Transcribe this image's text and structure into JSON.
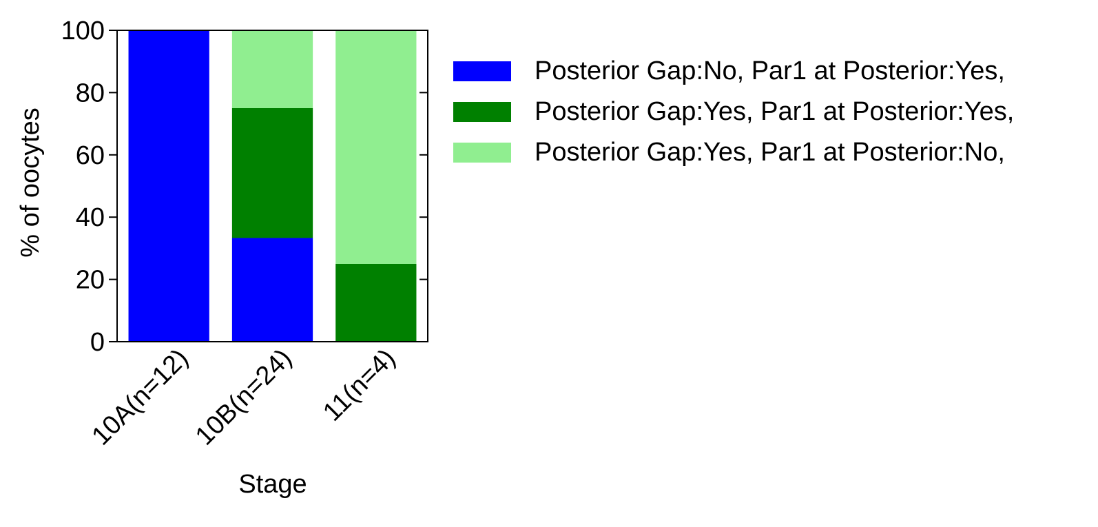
{
  "chart_data": {
    "type": "bar",
    "stacked": true,
    "title": "",
    "xlabel": "Stage",
    "ylabel": "% of oocytes",
    "ylim": [
      0,
      100
    ],
    "yticks": [
      0,
      20,
      40,
      60,
      80,
      100
    ],
    "yticklabels": [
      "0",
      "20",
      "40",
      "60",
      "80",
      "100"
    ],
    "categories": [
      "10A(n=12)",
      "10B(n=24)",
      "11(n=4)"
    ],
    "series": [
      {
        "name": "Posterior Gap:No, Par1 at Posterior:Yes,",
        "color": "#0000ff",
        "values": [
          100,
          33.3,
          0
        ]
      },
      {
        "name": "Posterior Gap:Yes, Par1 at Posterior:Yes,",
        "color": "#008000",
        "values": [
          0,
          41.7,
          25
        ]
      },
      {
        "name": "Posterior Gap:Yes, Par1 at Posterior:No,",
        "color": "#90ee90",
        "values": [
          0,
          25,
          75
        ]
      }
    ],
    "legend_position": "top-right, outside plot",
    "grid": false
  }
}
